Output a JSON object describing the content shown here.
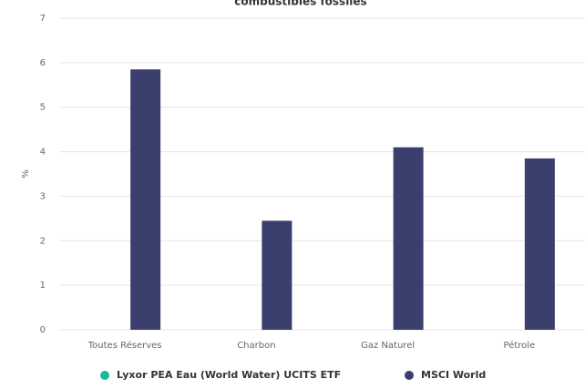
{
  "chart_data": {
    "type": "bar",
    "title": "combustibles fossiles",
    "y_label": "%",
    "categories": [
      "Toutes Réserves",
      "Charbon",
      "Gaz Naturel",
      "Pétrole"
    ],
    "series": [
      {
        "name": "Lyxor PEA Eau (World Water) UCITS ETF",
        "color": "#1bb89a",
        "values": [
          0,
          0,
          0,
          0
        ]
      },
      {
        "name": "MSCI World",
        "color": "#3b3f6e",
        "values": [
          5.85,
          2.45,
          4.1,
          3.85
        ]
      }
    ],
    "ylim": [
      0,
      7
    ],
    "yticks": [
      0,
      1,
      2,
      3,
      4,
      5,
      6,
      7
    ],
    "grid": true
  }
}
